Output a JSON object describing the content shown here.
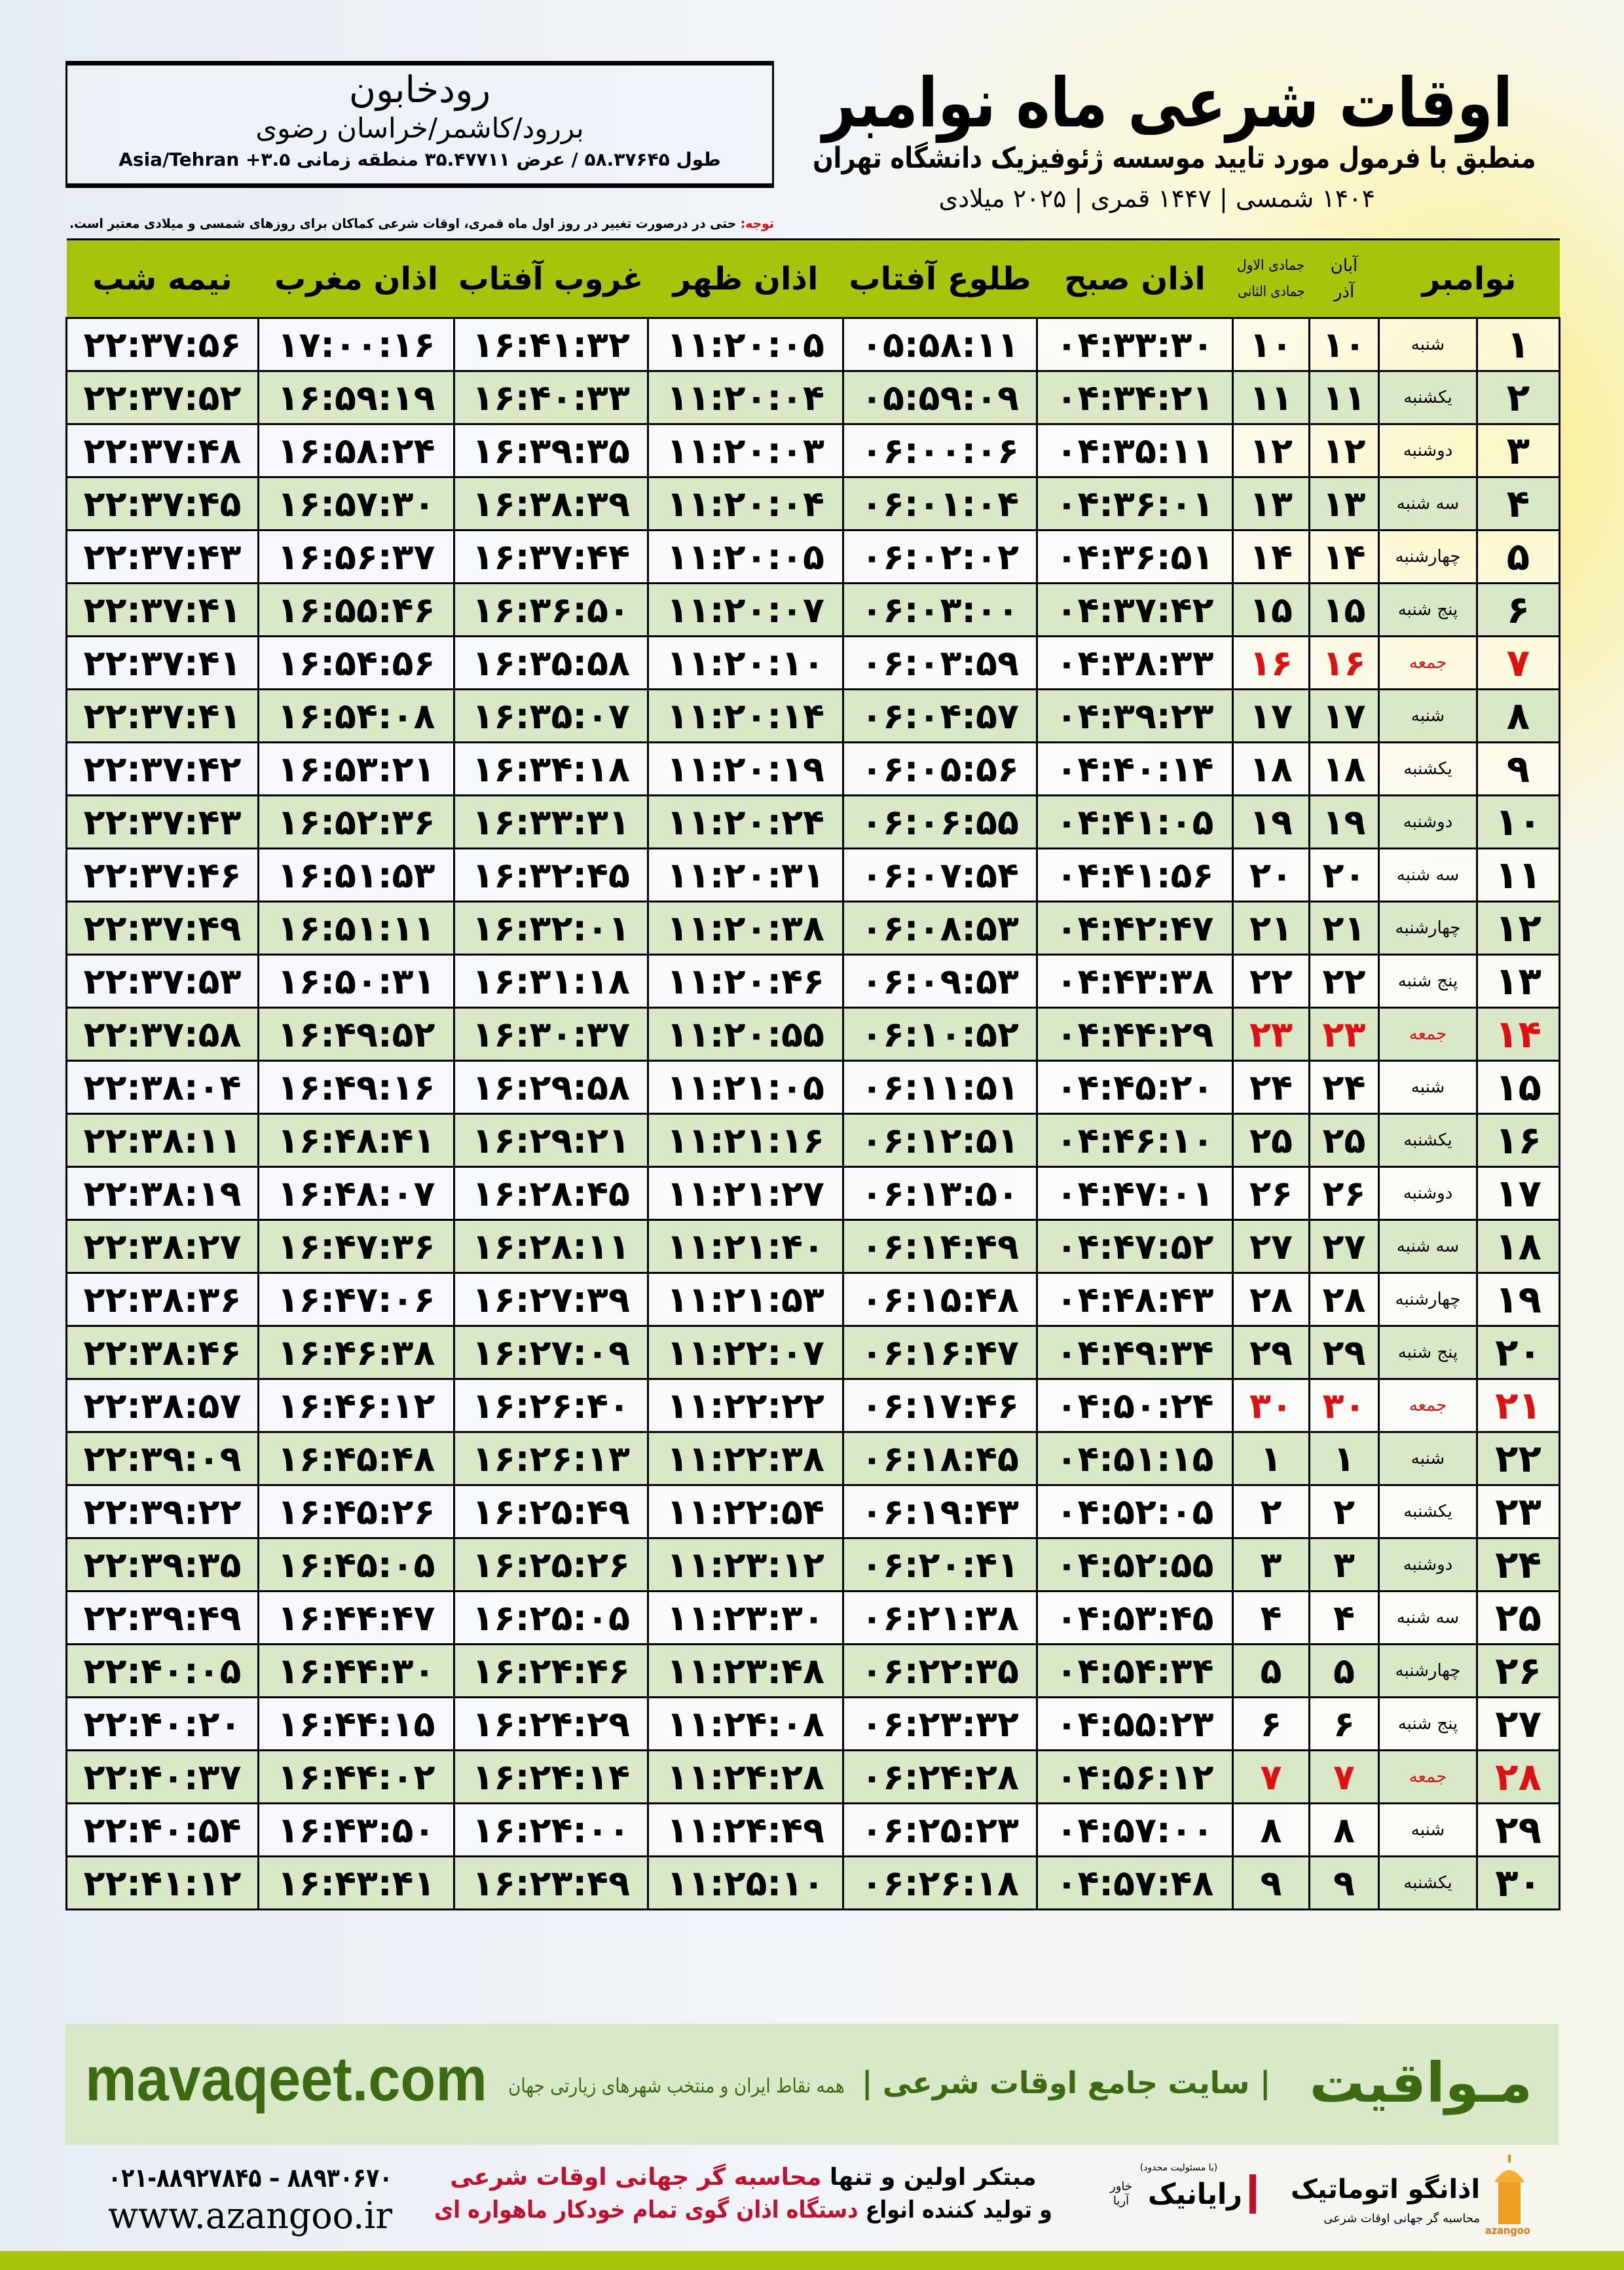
{
  "header": {
    "title": "اوقات شرعی ماه نوامبر",
    "subtitle": "منطبق با فرمول مورد تایید موسسه ژئوفیزیک دانشگاه تهران",
    "dates": "۱۴۰۴ شمسی | ۱۴۴۷ قمری | ۲۰۲۵ میلادی"
  },
  "location": {
    "city": "رودخابون",
    "path": "بررود/کاشمر/خراسان رضوی",
    "coords": "طول ۵۸.۳۷۶۴۵ / عرض ۳۵.۴۷۷۱۱ منطقه زمانی ۳.۵+ Asia/Tehran"
  },
  "note": {
    "label": "توجه:",
    "text": " حتی در درصورت تغییر در روز اول ماه قمری، اوقات شرعی کماکان برای روزهای شمسی و میلادی معتبر است."
  },
  "table": {
    "headers": {
      "month": "نوامبر",
      "shamsi_top": "آبان",
      "shamsi_bottom": "آذر",
      "qamari_top": "جمادی الاول",
      "qamari_bottom": "جمادی الثانی",
      "sobh": "اذان صبح",
      "tolu": "طلوع آفتاب",
      "zohr": "اذان ظهر",
      "ghorub": "غروب آفتاب",
      "maghrib": "اذان مغرب",
      "nimeh": "نیمه شب"
    },
    "holiday_color": "#e01010",
    "rows": [
      {
        "day": "۱",
        "weekday": "شنبه",
        "shamsi": "۱۰",
        "qamari": "۱۰",
        "sobh": "۰۴:۳۳:۳۰",
        "tolu": "۰۵:۵۸:۱۱",
        "zohr": "۱۱:۲۰:۰۵",
        "ghorub": "۱۶:۴۱:۳۲",
        "maghrib": "۱۷:۰۰:۱۶",
        "nimeh": "۲۲:۳۷:۵۶",
        "friday": false
      },
      {
        "day": "۲",
        "weekday": "یکشنبه",
        "shamsi": "۱۱",
        "qamari": "۱۱",
        "sobh": "۰۴:۳۴:۲۱",
        "tolu": "۰۵:۵۹:۰۹",
        "zohr": "۱۱:۲۰:۰۴",
        "ghorub": "۱۶:۴۰:۳۳",
        "maghrib": "۱۶:۵۹:۱۹",
        "nimeh": "۲۲:۳۷:۵۲",
        "friday": false
      },
      {
        "day": "۳",
        "weekday": "دوشنبه",
        "shamsi": "۱۲",
        "qamari": "۱۲",
        "sobh": "۰۴:۳۵:۱۱",
        "tolu": "۰۶:۰۰:۰۶",
        "zohr": "۱۱:۲۰:۰۳",
        "ghorub": "۱۶:۳۹:۳۵",
        "maghrib": "۱۶:۵۸:۲۴",
        "nimeh": "۲۲:۳۷:۴۸",
        "friday": false
      },
      {
        "day": "۴",
        "weekday": "سه شنبه",
        "shamsi": "۱۳",
        "qamari": "۱۳",
        "sobh": "۰۴:۳۶:۰۱",
        "tolu": "۰۶:۰۱:۰۴",
        "zohr": "۱۱:۲۰:۰۴",
        "ghorub": "۱۶:۳۸:۳۹",
        "maghrib": "۱۶:۵۷:۳۰",
        "nimeh": "۲۲:۳۷:۴۵",
        "friday": false
      },
      {
        "day": "۵",
        "weekday": "چهارشنبه",
        "shamsi": "۱۴",
        "qamari": "۱۴",
        "sobh": "۰۴:۳۶:۵۱",
        "tolu": "۰۶:۰۲:۰۲",
        "zohr": "۱۱:۲۰:۰۵",
        "ghorub": "۱۶:۳۷:۴۴",
        "maghrib": "۱۶:۵۶:۳۷",
        "nimeh": "۲۲:۳۷:۴۳",
        "friday": false
      },
      {
        "day": "۶",
        "weekday": "پنج شنبه",
        "shamsi": "۱۵",
        "qamari": "۱۵",
        "sobh": "۰۴:۳۷:۴۲",
        "tolu": "۰۶:۰۳:۰۰",
        "zohr": "۱۱:۲۰:۰۷",
        "ghorub": "۱۶:۳۶:۵۰",
        "maghrib": "۱۶:۵۵:۴۶",
        "nimeh": "۲۲:۳۷:۴۱",
        "friday": false
      },
      {
        "day": "۷",
        "weekday": "جمعه",
        "shamsi": "۱۶",
        "qamari": "۱۶",
        "sobh": "۰۴:۳۸:۳۳",
        "tolu": "۰۶:۰۳:۵۹",
        "zohr": "۱۱:۲۰:۱۰",
        "ghorub": "۱۶:۳۵:۵۸",
        "maghrib": "۱۶:۵۴:۵۶",
        "nimeh": "۲۲:۳۷:۴۱",
        "friday": true
      },
      {
        "day": "۸",
        "weekday": "شنبه",
        "shamsi": "۱۷",
        "qamari": "۱۷",
        "sobh": "۰۴:۳۹:۲۳",
        "tolu": "۰۶:۰۴:۵۷",
        "zohr": "۱۱:۲۰:۱۴",
        "ghorub": "۱۶:۳۵:۰۷",
        "maghrib": "۱۶:۵۴:۰۸",
        "nimeh": "۲۲:۳۷:۴۱",
        "friday": false
      },
      {
        "day": "۹",
        "weekday": "یکشنبه",
        "shamsi": "۱۸",
        "qamari": "۱۸",
        "sobh": "۰۴:۴۰:۱۴",
        "tolu": "۰۶:۰۵:۵۶",
        "zohr": "۱۱:۲۰:۱۹",
        "ghorub": "۱۶:۳۴:۱۸",
        "maghrib": "۱۶:۵۳:۲۱",
        "nimeh": "۲۲:۳۷:۴۲",
        "friday": false
      },
      {
        "day": "۱۰",
        "weekday": "دوشنبه",
        "shamsi": "۱۹",
        "qamari": "۱۹",
        "sobh": "۰۴:۴۱:۰۵",
        "tolu": "۰۶:۰۶:۵۵",
        "zohr": "۱۱:۲۰:۲۴",
        "ghorub": "۱۶:۳۳:۳۱",
        "maghrib": "۱۶:۵۲:۳۶",
        "nimeh": "۲۲:۳۷:۴۳",
        "friday": false
      },
      {
        "day": "۱۱",
        "weekday": "سه شنبه",
        "shamsi": "۲۰",
        "qamari": "۲۰",
        "sobh": "۰۴:۴۱:۵۶",
        "tolu": "۰۶:۰۷:۵۴",
        "zohr": "۱۱:۲۰:۳۱",
        "ghorub": "۱۶:۳۲:۴۵",
        "maghrib": "۱۶:۵۱:۵۳",
        "nimeh": "۲۲:۳۷:۴۶",
        "friday": false
      },
      {
        "day": "۱۲",
        "weekday": "چهارشنبه",
        "shamsi": "۲۱",
        "qamari": "۲۱",
        "sobh": "۰۴:۴۲:۴۷",
        "tolu": "۰۶:۰۸:۵۳",
        "zohr": "۱۱:۲۰:۳۸",
        "ghorub": "۱۶:۳۲:۰۱",
        "maghrib": "۱۶:۵۱:۱۱",
        "nimeh": "۲۲:۳۷:۴۹",
        "friday": false
      },
      {
        "day": "۱۳",
        "weekday": "پنج شنبه",
        "shamsi": "۲۲",
        "qamari": "۲۲",
        "sobh": "۰۴:۴۳:۳۸",
        "tolu": "۰۶:۰۹:۵۳",
        "zohr": "۱۱:۲۰:۴۶",
        "ghorub": "۱۶:۳۱:۱۸",
        "maghrib": "۱۶:۵۰:۳۱",
        "nimeh": "۲۲:۳۷:۵۳",
        "friday": false
      },
      {
        "day": "۱۴",
        "weekday": "جمعه",
        "shamsi": "۲۳",
        "qamari": "۲۳",
        "sobh": "۰۴:۴۴:۲۹",
        "tolu": "۰۶:۱۰:۵۲",
        "zohr": "۱۱:۲۰:۵۵",
        "ghorub": "۱۶:۳۰:۳۷",
        "maghrib": "۱۶:۴۹:۵۲",
        "nimeh": "۲۲:۳۷:۵۸",
        "friday": true
      },
      {
        "day": "۱۵",
        "weekday": "شنبه",
        "shamsi": "۲۴",
        "qamari": "۲۴",
        "sobh": "۰۴:۴۵:۲۰",
        "tolu": "۰۶:۱۱:۵۱",
        "zohr": "۱۱:۲۱:۰۵",
        "ghorub": "۱۶:۲۹:۵۸",
        "maghrib": "۱۶:۴۹:۱۶",
        "nimeh": "۲۲:۳۸:۰۴",
        "friday": false
      },
      {
        "day": "۱۶",
        "weekday": "یکشنبه",
        "shamsi": "۲۵",
        "qamari": "۲۵",
        "sobh": "۰۴:۴۶:۱۰",
        "tolu": "۰۶:۱۲:۵۱",
        "zohr": "۱۱:۲۱:۱۶",
        "ghorub": "۱۶:۲۹:۲۱",
        "maghrib": "۱۶:۴۸:۴۱",
        "nimeh": "۲۲:۳۸:۱۱",
        "friday": false
      },
      {
        "day": "۱۷",
        "weekday": "دوشنبه",
        "shamsi": "۲۶",
        "qamari": "۲۶",
        "sobh": "۰۴:۴۷:۰۱",
        "tolu": "۰۶:۱۳:۵۰",
        "zohr": "۱۱:۲۱:۲۷",
        "ghorub": "۱۶:۲۸:۴۵",
        "maghrib": "۱۶:۴۸:۰۷",
        "nimeh": "۲۲:۳۸:۱۹",
        "friday": false
      },
      {
        "day": "۱۸",
        "weekday": "سه شنبه",
        "shamsi": "۲۷",
        "qamari": "۲۷",
        "sobh": "۰۴:۴۷:۵۲",
        "tolu": "۰۶:۱۴:۴۹",
        "zohr": "۱۱:۲۱:۴۰",
        "ghorub": "۱۶:۲۸:۱۱",
        "maghrib": "۱۶:۴۷:۳۶",
        "nimeh": "۲۲:۳۸:۲۷",
        "friday": false
      },
      {
        "day": "۱۹",
        "weekday": "چهارشنبه",
        "shamsi": "۲۸",
        "qamari": "۲۸",
        "sobh": "۰۴:۴۸:۴۳",
        "tolu": "۰۶:۱۵:۴۸",
        "zohr": "۱۱:۲۱:۵۳",
        "ghorub": "۱۶:۲۷:۳۹",
        "maghrib": "۱۶:۴۷:۰۶",
        "nimeh": "۲۲:۳۸:۳۶",
        "friday": false
      },
      {
        "day": "۲۰",
        "weekday": "پنج شنبه",
        "shamsi": "۲۹",
        "qamari": "۲۹",
        "sobh": "۰۴:۴۹:۳۴",
        "tolu": "۰۶:۱۶:۴۷",
        "zohr": "۱۱:۲۲:۰۷",
        "ghorub": "۱۶:۲۷:۰۹",
        "maghrib": "۱۶:۴۶:۳۸",
        "nimeh": "۲۲:۳۸:۴۶",
        "friday": false
      },
      {
        "day": "۲۱",
        "weekday": "جمعه",
        "shamsi": "۳۰",
        "qamari": "۳۰",
        "sobh": "۰۴:۵۰:۲۴",
        "tolu": "۰۶:۱۷:۴۶",
        "zohr": "۱۱:۲۲:۲۲",
        "ghorub": "۱۶:۲۶:۴۰",
        "maghrib": "۱۶:۴۶:۱۲",
        "nimeh": "۲۲:۳۸:۵۷",
        "friday": true
      },
      {
        "day": "۲۲",
        "weekday": "شنبه",
        "shamsi": "۱",
        "qamari": "۱",
        "sobh": "۰۴:۵۱:۱۵",
        "tolu": "۰۶:۱۸:۴۵",
        "zohr": "۱۱:۲۲:۳۸",
        "ghorub": "۱۶:۲۶:۱۳",
        "maghrib": "۱۶:۴۵:۴۸",
        "nimeh": "۲۲:۳۹:۰۹",
        "friday": false
      },
      {
        "day": "۲۳",
        "weekday": "یکشنبه",
        "shamsi": "۲",
        "qamari": "۲",
        "sobh": "۰۴:۵۲:۰۵",
        "tolu": "۰۶:۱۹:۴۳",
        "zohr": "۱۱:۲۲:۵۴",
        "ghorub": "۱۶:۲۵:۴۹",
        "maghrib": "۱۶:۴۵:۲۶",
        "nimeh": "۲۲:۳۹:۲۲",
        "friday": false
      },
      {
        "day": "۲۴",
        "weekday": "دوشنبه",
        "shamsi": "۳",
        "qamari": "۳",
        "sobh": "۰۴:۵۲:۵۵",
        "tolu": "۰۶:۲۰:۴۱",
        "zohr": "۱۱:۲۳:۱۲",
        "ghorub": "۱۶:۲۵:۲۶",
        "maghrib": "۱۶:۴۵:۰۵",
        "nimeh": "۲۲:۳۹:۳۵",
        "friday": false
      },
      {
        "day": "۲۵",
        "weekday": "سه شنبه",
        "shamsi": "۴",
        "qamari": "۴",
        "sobh": "۰۴:۵۳:۴۵",
        "tolu": "۰۶:۲۱:۳۸",
        "zohr": "۱۱:۲۳:۳۰",
        "ghorub": "۱۶:۲۵:۰۵",
        "maghrib": "۱۶:۴۴:۴۷",
        "nimeh": "۲۲:۳۹:۴۹",
        "friday": false
      },
      {
        "day": "۲۶",
        "weekday": "چهارشنبه",
        "shamsi": "۵",
        "qamari": "۵",
        "sobh": "۰۴:۵۴:۳۴",
        "tolu": "۰۶:۲۲:۳۵",
        "zohr": "۱۱:۲۳:۴۸",
        "ghorub": "۱۶:۲۴:۴۶",
        "maghrib": "۱۶:۴۴:۳۰",
        "nimeh": "۲۲:۴۰:۰۵",
        "friday": false
      },
      {
        "day": "۲۷",
        "weekday": "پنج شنبه",
        "shamsi": "۶",
        "qamari": "۶",
        "sobh": "۰۴:۵۵:۲۳",
        "tolu": "۰۶:۲۳:۳۲",
        "zohr": "۱۱:۲۴:۰۸",
        "ghorub": "۱۶:۲۴:۲۹",
        "maghrib": "۱۶:۴۴:۱۵",
        "nimeh": "۲۲:۴۰:۲۰",
        "friday": false
      },
      {
        "day": "۲۸",
        "weekday": "جمعه",
        "shamsi": "۷",
        "qamari": "۷",
        "sobh": "۰۴:۵۶:۱۲",
        "tolu": "۰۶:۲۴:۲۸",
        "zohr": "۱۱:۲۴:۲۸",
        "ghorub": "۱۶:۲۴:۱۴",
        "maghrib": "۱۶:۴۴:۰۲",
        "nimeh": "۲۲:۴۰:۳۷",
        "friday": true
      },
      {
        "day": "۲۹",
        "weekday": "شنبه",
        "shamsi": "۸",
        "qamari": "۸",
        "sobh": "۰۴:۵۷:۰۰",
        "tolu": "۰۶:۲۵:۲۳",
        "zohr": "۱۱:۲۴:۴۹",
        "ghorub": "۱۶:۲۴:۰۰",
        "maghrib": "۱۶:۴۳:۵۰",
        "nimeh": "۲۲:۴۰:۵۴",
        "friday": false
      },
      {
        "day": "۳۰",
        "weekday": "یکشنبه",
        "shamsi": "۹",
        "qamari": "۹",
        "sobh": "۰۴:۵۷:۴۸",
        "tolu": "۰۶:۲۶:۱۸",
        "zohr": "۱۱:۲۵:۱۰",
        "ghorub": "۱۶:۲۳:۴۹",
        "maghrib": "۱۶:۴۳:۴۱",
        "nimeh": "۲۲:۴۱:۱۲",
        "friday": false
      }
    ]
  },
  "footer": {
    "url": "mavaqeet.com",
    "brand": "مـواقیت",
    "slogan": "| سایت جامع اوقات شرعی |",
    "sub": "همه نقاط ایران و منتخب شهرهای زیارتی جهان",
    "phone": "۰۲۱-۸۸۹۲۷۸۴۵ – ۸۸۹۳۰۶۷۰",
    "website": "www.azangoo.ir",
    "promo_line1_a": "مبتکر اولین و تنها ",
    "promo_line1_b": "محاسبه گر جهانی اوقات شرعی",
    "promo_line2_a": "و تولید کننده انواع ",
    "promo_line2_b": "دستگاه اذان گوی تمام خودکار ماهواره ای",
    "rayanik_note": "(با مسئولیت محدود)",
    "rayanik_name": "رایانیک",
    "rayanik_sub": "خاور آریا",
    "azangoo_name": "اذانگو اتوماتیک",
    "azangoo_latin": "azangoo",
    "azangoo_sub": "محاسبه گر جهانی اوقات شرعی",
    "accent_color": "#3c6a10",
    "bar_color": "#a7c40a"
  }
}
